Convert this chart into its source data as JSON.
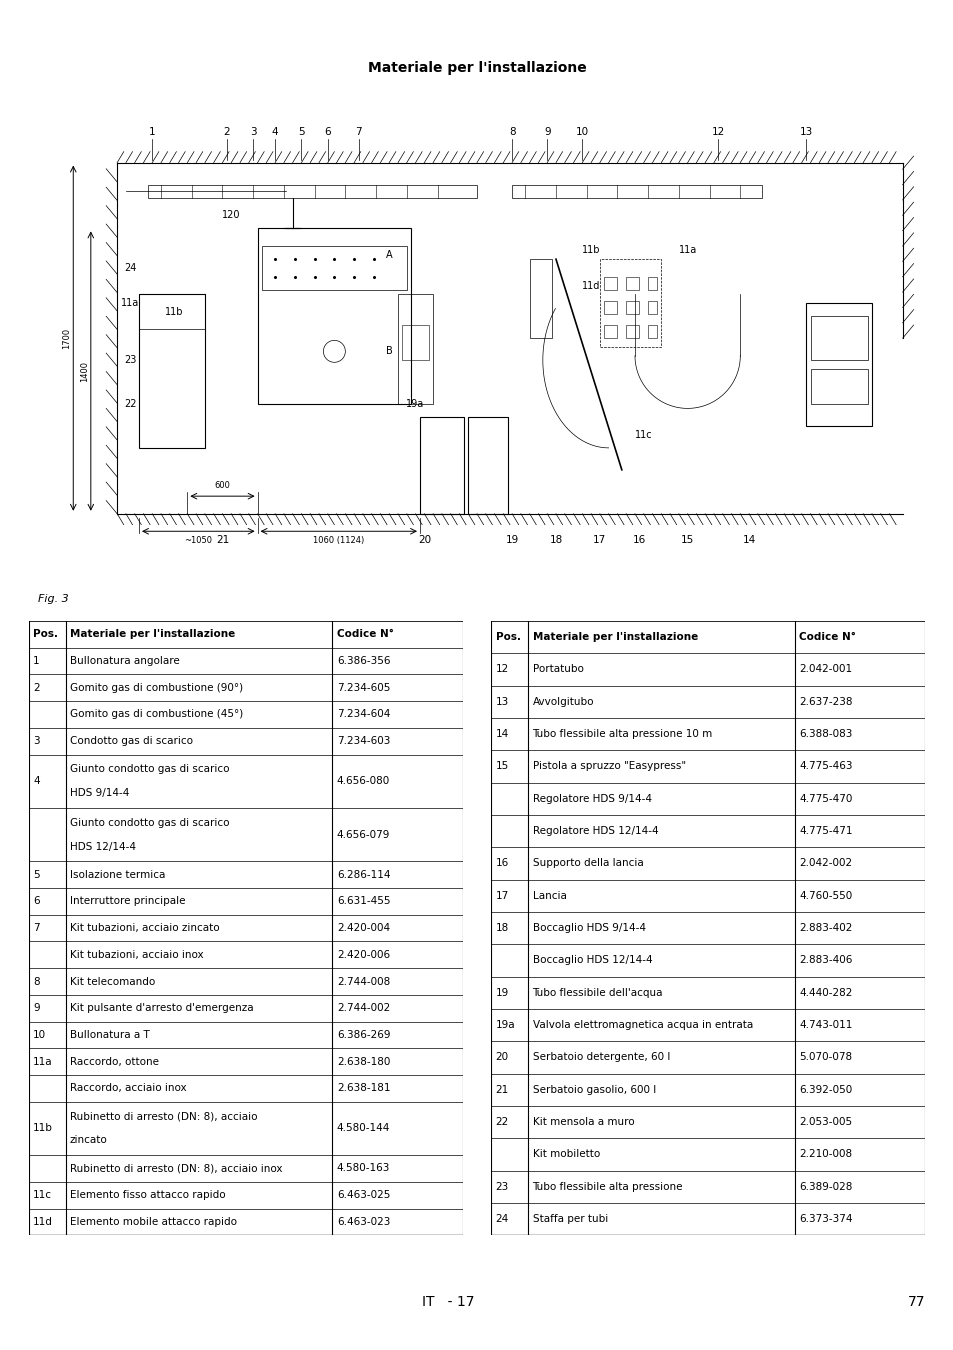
{
  "title": "Materiale per l'installazione",
  "fig_label": "Fig. 3",
  "page_info": "IT   - 17",
  "page_number": "77",
  "header_bg": "#d0d0d0",
  "table_left": [
    [
      "Pos.",
      "Materiale per l'installazione",
      "Codice N°"
    ],
    [
      "1",
      "Bullonatura angolare",
      "6.386-356"
    ],
    [
      "2",
      "Gomito gas di combustione (90°)",
      "7.234-605"
    ],
    [
      "",
      "Gomito gas di combustione (45°)",
      "7.234-604"
    ],
    [
      "3",
      "Condotto gas di scarico",
      "7.234-603"
    ],
    [
      "4",
      "Giunto condotto gas di scarico\nHDS 9/14-4",
      "4.656-080"
    ],
    [
      "",
      "Giunto condotto gas di scarico\nHDS 12/14-4",
      "4.656-079"
    ],
    [
      "5",
      "Isolazione termica",
      "6.286-114"
    ],
    [
      "6",
      "Interruttore principale",
      "6.631-455"
    ],
    [
      "7",
      "Kit tubazioni, acciaio zincato",
      "2.420-004"
    ],
    [
      "",
      "Kit tubazioni, acciaio inox",
      "2.420-006"
    ],
    [
      "8",
      "Kit telecomando",
      "2.744-008"
    ],
    [
      "9",
      "Kit pulsante d'arresto d'emergenza",
      "2.744-002"
    ],
    [
      "10",
      "Bullonatura a T",
      "6.386-269"
    ],
    [
      "11a",
      "Raccordo, ottone",
      "2.638-180"
    ],
    [
      "",
      "Raccordo, acciaio inox",
      "2.638-181"
    ],
    [
      "11b",
      "Rubinetto di arresto (DN: 8), acciaio\nzincato",
      "4.580-144"
    ],
    [
      "",
      "Rubinetto di arresto (DN: 8), acciaio inox",
      "4.580-163"
    ],
    [
      "11c",
      "Elemento fisso attacco rapido",
      "6.463-025"
    ],
    [
      "11d",
      "Elemento mobile attacco rapido",
      "6.463-023"
    ]
  ],
  "table_right": [
    [
      "Pos.",
      "Materiale per l'installazione",
      "Codice N°"
    ],
    [
      "12",
      "Portatubo",
      "2.042-001"
    ],
    [
      "13",
      "Avvolgitubo",
      "2.637-238"
    ],
    [
      "14",
      "Tubo flessibile alta pressione 10 m",
      "6.388-083"
    ],
    [
      "15",
      "Pistola a spruzzo \"Easypress\"",
      "4.775-463"
    ],
    [
      "",
      "Regolatore HDS 9/14-4",
      "4.775-470"
    ],
    [
      "",
      "Regolatore HDS 12/14-4",
      "4.775-471"
    ],
    [
      "16",
      "Supporto della lancia",
      "2.042-002"
    ],
    [
      "17",
      "Lancia",
      "4.760-550"
    ],
    [
      "18",
      "Boccaglio HDS 9/14-4",
      "2.883-402"
    ],
    [
      "",
      "Boccaglio HDS 12/14-4",
      "2.883-406"
    ],
    [
      "19",
      "Tubo flessibile dell'acqua",
      "4.440-282"
    ],
    [
      "19a",
      "Valvola elettromagnetica acqua in entrata",
      "4.743-011"
    ],
    [
      "20",
      "Serbatoio detergente, 60 l",
      "5.070-078"
    ],
    [
      "21",
      "Serbatoio gasolio, 600 l",
      "6.392-050"
    ],
    [
      "22",
      "Kit mensola a muro",
      "2.053-005"
    ],
    [
      "",
      "Kit mobiletto",
      "2.210-008"
    ],
    [
      "23",
      "Tubo flessibile alta pressione",
      "6.389-028"
    ],
    [
      "24",
      "Staffa per tubi",
      "6.373-374"
    ]
  ]
}
